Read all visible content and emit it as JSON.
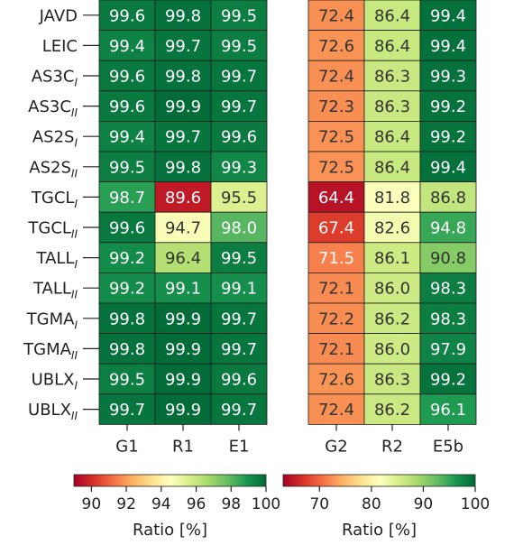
{
  "chart_data": [
    {
      "type": "heatmap",
      "rows": [
        "JAVD",
        "LEIC",
        "AS3C_I",
        "AS3C_II",
        "AS2S_I",
        "AS2S_II",
        "TGCL_I",
        "TGCL_II",
        "TALL_I",
        "TALL_II",
        "TGMA_I",
        "TGMA_II",
        "UBLX_I",
        "UBLX_II"
      ],
      "columns": [
        "G1",
        "R1",
        "E1"
      ],
      "values": [
        [
          99.6,
          99.8,
          99.5
        ],
        [
          99.4,
          99.7,
          99.5
        ],
        [
          99.6,
          99.8,
          99.7
        ],
        [
          99.6,
          99.9,
          99.7
        ],
        [
          99.4,
          99.7,
          99.6
        ],
        [
          99.5,
          99.8,
          99.3
        ],
        [
          98.7,
          89.6,
          95.5
        ],
        [
          99.6,
          94.7,
          98.0
        ],
        [
          99.2,
          96.4,
          99.5
        ],
        [
          99.2,
          99.1,
          99.1
        ],
        [
          99.8,
          99.9,
          99.7
        ],
        [
          99.8,
          99.9,
          99.7
        ],
        [
          99.5,
          99.9,
          99.6
        ],
        [
          99.7,
          99.9,
          99.7
        ]
      ],
      "value_labels": [
        [
          "99.6",
          "99.8",
          "99.5"
        ],
        [
          "99.4",
          "99.7",
          "99.5"
        ],
        [
          "99.6",
          "99.8",
          "99.7"
        ],
        [
          "99.6",
          "99.9",
          "99.7"
        ],
        [
          "99.4",
          "99.7",
          "99.6"
        ],
        [
          "99.5",
          "99.8",
          "99.3"
        ],
        [
          "98.7",
          "89.6",
          "95.5"
        ],
        [
          "99.6",
          "94.7",
          "98.0"
        ],
        [
          "99.2",
          "96.4",
          "99.5"
        ],
        [
          "99.2",
          "99.1",
          "99.1"
        ],
        [
          "99.8",
          "99.9",
          "99.7"
        ],
        [
          "99.8",
          "99.9",
          "99.7"
        ],
        [
          "99.5",
          "99.9",
          "99.6"
        ],
        [
          "99.7",
          "99.9",
          "99.7"
        ]
      ],
      "colorbar": {
        "range": [
          89,
          100
        ],
        "ticks": [
          90,
          92,
          94,
          96,
          98,
          100
        ],
        "label": "Ratio [%]",
        "colormap": "RdYlGn"
      }
    },
    {
      "type": "heatmap",
      "rows": [
        "JAVD",
        "LEIC",
        "AS3C_I",
        "AS3C_II",
        "AS2S_I",
        "AS2S_II",
        "TGCL_I",
        "TGCL_II",
        "TALL_I",
        "TALL_II",
        "TGMA_I",
        "TGMA_II",
        "UBLX_I",
        "UBLX_II"
      ],
      "columns": [
        "G2",
        "R2",
        "E5b"
      ],
      "values": [
        [
          72.4,
          86.4,
          99.4
        ],
        [
          72.6,
          86.4,
          99.4
        ],
        [
          72.4,
          86.3,
          99.3
        ],
        [
          72.3,
          86.3,
          99.2
        ],
        [
          72.5,
          86.4,
          99.2
        ],
        [
          72.5,
          86.4,
          99.4
        ],
        [
          64.4,
          81.8,
          86.8
        ],
        [
          67.4,
          82.6,
          94.8
        ],
        [
          71.5,
          86.1,
          90.8
        ],
        [
          72.1,
          86.0,
          98.3
        ],
        [
          72.2,
          86.2,
          98.3
        ],
        [
          72.1,
          86.0,
          97.9
        ],
        [
          72.6,
          86.3,
          99.2
        ],
        [
          72.4,
          86.2,
          96.1
        ]
      ],
      "value_labels": [
        [
          "72.4",
          "86.4",
          "99.4"
        ],
        [
          "72.6",
          "86.4",
          "99.4"
        ],
        [
          "72.4",
          "86.3",
          "99.3"
        ],
        [
          "72.3",
          "86.3",
          "99.2"
        ],
        [
          "72.5",
          "86.4",
          "99.2"
        ],
        [
          "72.5",
          "86.4",
          "99.4"
        ],
        [
          "64.4",
          "81.8",
          "86.8"
        ],
        [
          "67.4",
          "82.6",
          "94.8"
        ],
        [
          "71.5",
          "86.1",
          "90.8"
        ],
        [
          "72.1",
          "86.0",
          "98.3"
        ],
        [
          "72.2",
          "86.2",
          "98.3"
        ],
        [
          "72.1",
          "86.0",
          "97.9"
        ],
        [
          "72.6",
          "86.3",
          "99.2"
        ],
        [
          "72.4",
          "86.2",
          "96.1"
        ]
      ],
      "colorbar": {
        "range": [
          63,
          100
        ],
        "ticks": [
          70,
          80,
          90,
          100
        ],
        "label": "Ratio [%]",
        "colormap": "RdYlGn"
      }
    }
  ]
}
